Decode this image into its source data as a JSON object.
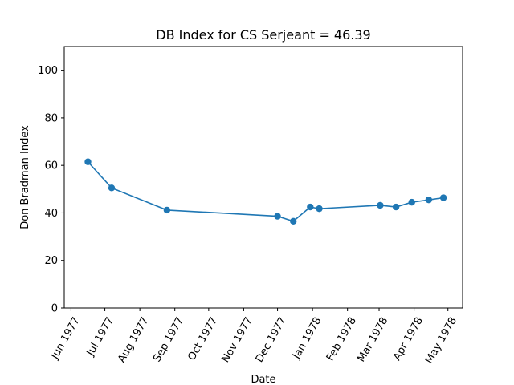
{
  "chart_data": {
    "type": "line",
    "title": "DB Index for CS Serjeant = 46.39",
    "xlabel": "Date",
    "ylabel": "Don Bradman Index",
    "ylim": [
      0,
      110
    ],
    "xlim": [
      "1977-05-26",
      "1978-05-14"
    ],
    "yticks": [
      0,
      20,
      40,
      60,
      80,
      100
    ],
    "xticks": [
      {
        "date": "1977-06-01",
        "label": "Jun 1977"
      },
      {
        "date": "1977-07-01",
        "label": "Jul 1977"
      },
      {
        "date": "1977-08-01",
        "label": "Aug 1977"
      },
      {
        "date": "1977-09-01",
        "label": "Sep 1977"
      },
      {
        "date": "1977-10-01",
        "label": "Oct 1977"
      },
      {
        "date": "1977-11-01",
        "label": "Nov 1977"
      },
      {
        "date": "1977-12-01",
        "label": "Dec 1977"
      },
      {
        "date": "1978-01-01",
        "label": "Jan 1978"
      },
      {
        "date": "1978-02-01",
        "label": "Feb 1978"
      },
      {
        "date": "1978-03-01",
        "label": "Mar 1978"
      },
      {
        "date": "1978-04-01",
        "label": "Apr 1978"
      },
      {
        "date": "1978-05-01",
        "label": "May 1978"
      }
    ],
    "series": [
      {
        "color": "#1f77b4",
        "marker": "circle",
        "points": [
          {
            "x": "1977-06-16",
            "y": 61.5
          },
          {
            "x": "1977-07-07",
            "y": 50.5
          },
          {
            "x": "1977-08-25",
            "y": 41.2
          },
          {
            "x": "1977-12-01",
            "y": 38.6
          },
          {
            "x": "1977-12-15",
            "y": 36.5
          },
          {
            "x": "1977-12-30",
            "y": 42.5
          },
          {
            "x": "1978-01-07",
            "y": 41.8
          },
          {
            "x": "1978-03-02",
            "y": 43.2
          },
          {
            "x": "1978-03-16",
            "y": 42.5
          },
          {
            "x": "1978-03-30",
            "y": 44.5
          },
          {
            "x": "1978-04-14",
            "y": 45.5
          },
          {
            "x": "1978-04-27",
            "y": 46.39
          }
        ]
      }
    ],
    "grid": false,
    "legend": "none"
  }
}
